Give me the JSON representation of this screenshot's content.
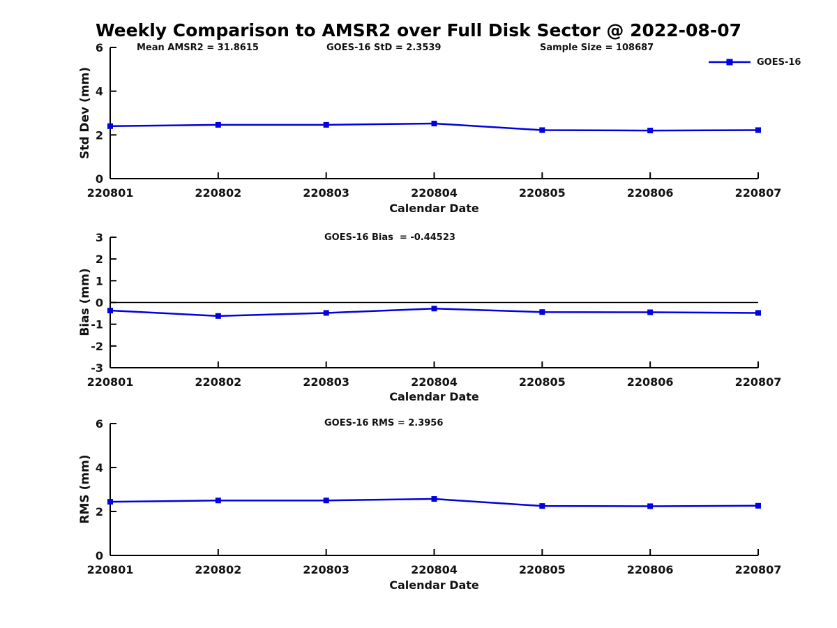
{
  "title": "Weekly Comparison to AMSR2 over Full Disk Sector @ 2022-08-07",
  "legend": {
    "label": "GOES-16",
    "color": "#0000e0"
  },
  "colors": {
    "series_blue": "#0000e0",
    "axis": "#000000"
  },
  "chart_data": [
    {
      "type": "line",
      "annotations": [
        "Mean AMSR2 = 31.8615",
        "GOES-16 StD = 2.3539",
        "Sample Size = 108687"
      ],
      "x": [
        "220801",
        "220802",
        "220803",
        "220804",
        "220805",
        "220806",
        "220807"
      ],
      "series": [
        {
          "name": "GOES-16",
          "color": "#0000e0",
          "marker": "square",
          "values": [
            2.4,
            2.46,
            2.46,
            2.52,
            2.22,
            2.2,
            2.22
          ]
        }
      ],
      "xlabel": "Calendar Date",
      "ylabel": "Std Dev (mm)",
      "ylim": [
        0,
        6
      ],
      "yticks": [
        0,
        2,
        4,
        6
      ],
      "grid": false,
      "zero_line": false,
      "legend_position": "top-right"
    },
    {
      "type": "line",
      "annotations": [
        "GOES-16 Bias  = -0.44523"
      ],
      "x": [
        "220801",
        "220802",
        "220803",
        "220804",
        "220805",
        "220806",
        "220807"
      ],
      "series": [
        {
          "name": "GOES-16",
          "color": "#0000e0",
          "marker": "square",
          "values": [
            -0.37,
            -0.62,
            -0.48,
            -0.28,
            -0.44,
            -0.45,
            -0.48
          ]
        }
      ],
      "xlabel": "Calendar Date",
      "ylabel": "Bias (mm)",
      "ylim": [
        -3,
        3
      ],
      "yticks": [
        -3,
        -2,
        -1,
        0,
        1,
        2,
        3
      ],
      "grid": false,
      "zero_line": true,
      "legend_position": "none"
    },
    {
      "type": "line",
      "annotations": [
        "GOES-16 RMS = 2.3956"
      ],
      "x": [
        "220801",
        "220802",
        "220803",
        "220804",
        "220805",
        "220806",
        "220807"
      ],
      "series": [
        {
          "name": "GOES-16",
          "color": "#0000e0",
          "marker": "square",
          "values": [
            2.44,
            2.5,
            2.5,
            2.57,
            2.25,
            2.24,
            2.26
          ]
        }
      ],
      "xlabel": "Calendar Date",
      "ylabel": "RMS (mm)",
      "ylim": [
        0,
        6
      ],
      "yticks": [
        0,
        2,
        4,
        6
      ],
      "grid": false,
      "zero_line": false,
      "legend_position": "none"
    }
  ]
}
